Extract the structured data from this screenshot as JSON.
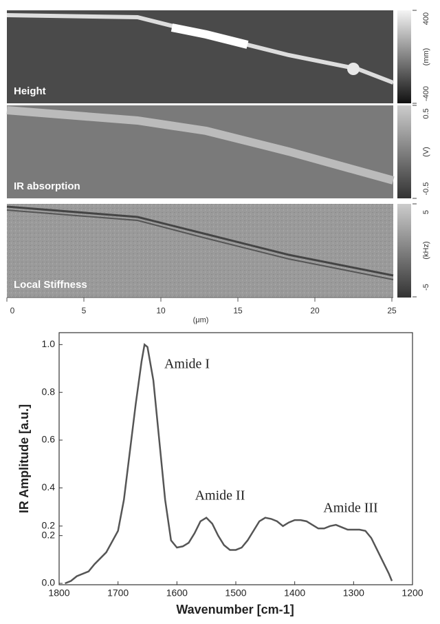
{
  "image_panels": {
    "panels": [
      {
        "label": "Height",
        "colorbar": {
          "lim": [
            -400,
            400
          ],
          "ticks": [
            400,
            -400
          ],
          "unit": "(mm)"
        }
      },
      {
        "label": "IR absorption",
        "colorbar": {
          "lim": [
            -0.5,
            0.5
          ],
          "ticks": [
            0.5,
            -0.5
          ],
          "unit": "(V)"
        }
      },
      {
        "label": "Local Stiffness",
        "colorbar": {
          "lim": [
            -5,
            5
          ],
          "ticks": [
            5,
            -5
          ],
          "unit": "(kHz)"
        }
      }
    ],
    "xlim": [
      0,
      25
    ],
    "xticks": [
      0,
      5,
      10,
      15,
      20,
      25
    ],
    "x_label": "(μm)"
  },
  "chart_data": {
    "type": "line",
    "x_label": "Wavenumber [cm-1]",
    "y_label": "IR Amplitude [a.u.]",
    "annotations": [
      "Amide I",
      "Amide II",
      "Amide III"
    ],
    "xlim": [
      1800,
      1200
    ],
    "xticks": [
      1800,
      1700,
      1600,
      1500,
      1400,
      1300,
      1200
    ],
    "ylim": [
      0,
      1.05
    ],
    "yticks": [
      {
        "value": 0,
        "label": "0.0"
      },
      {
        "value": 0.2,
        "label": "0.2"
      },
      {
        "value": 0.24,
        "label": "0.2"
      },
      {
        "value": 0.4,
        "label": "0.4"
      },
      {
        "value": 0.6,
        "label": "0.6"
      },
      {
        "value": 0.8,
        "label": "0.8"
      },
      {
        "value": 1,
        "label": "1.0"
      }
    ],
    "x": [
      1790,
      1780,
      1770,
      1750,
      1740,
      1720,
      1700,
      1690,
      1680,
      1670,
      1660,
      1655,
      1650,
      1640,
      1630,
      1620,
      1610,
      1600,
      1590,
      1580,
      1570,
      1560,
      1550,
      1540,
      1530,
      1520,
      1510,
      1500,
      1490,
      1480,
      1470,
      1460,
      1450,
      1440,
      1430,
      1420,
      1410,
      1400,
      1390,
      1380,
      1370,
      1360,
      1350,
      1340,
      1330,
      1320,
      1310,
      1300,
      1290,
      1280,
      1270,
      1260,
      1250,
      1240,
      1235
    ],
    "series": [
      {
        "color": "#555555",
        "values": [
          0.0,
          0.01,
          0.03,
          0.05,
          0.08,
          0.13,
          0.22,
          0.35,
          0.55,
          0.75,
          0.93,
          1.0,
          0.99,
          0.85,
          0.6,
          0.35,
          0.18,
          0.15,
          0.155,
          0.17,
          0.21,
          0.26,
          0.275,
          0.25,
          0.2,
          0.16,
          0.14,
          0.14,
          0.15,
          0.18,
          0.22,
          0.26,
          0.275,
          0.27,
          0.26,
          0.24,
          0.255,
          0.265,
          0.265,
          0.26,
          0.245,
          0.23,
          0.23,
          0.24,
          0.245,
          0.235,
          0.225,
          0.225,
          0.225,
          0.22,
          0.19,
          0.14,
          0.09,
          0.04,
          0.01
        ]
      }
    ]
  }
}
